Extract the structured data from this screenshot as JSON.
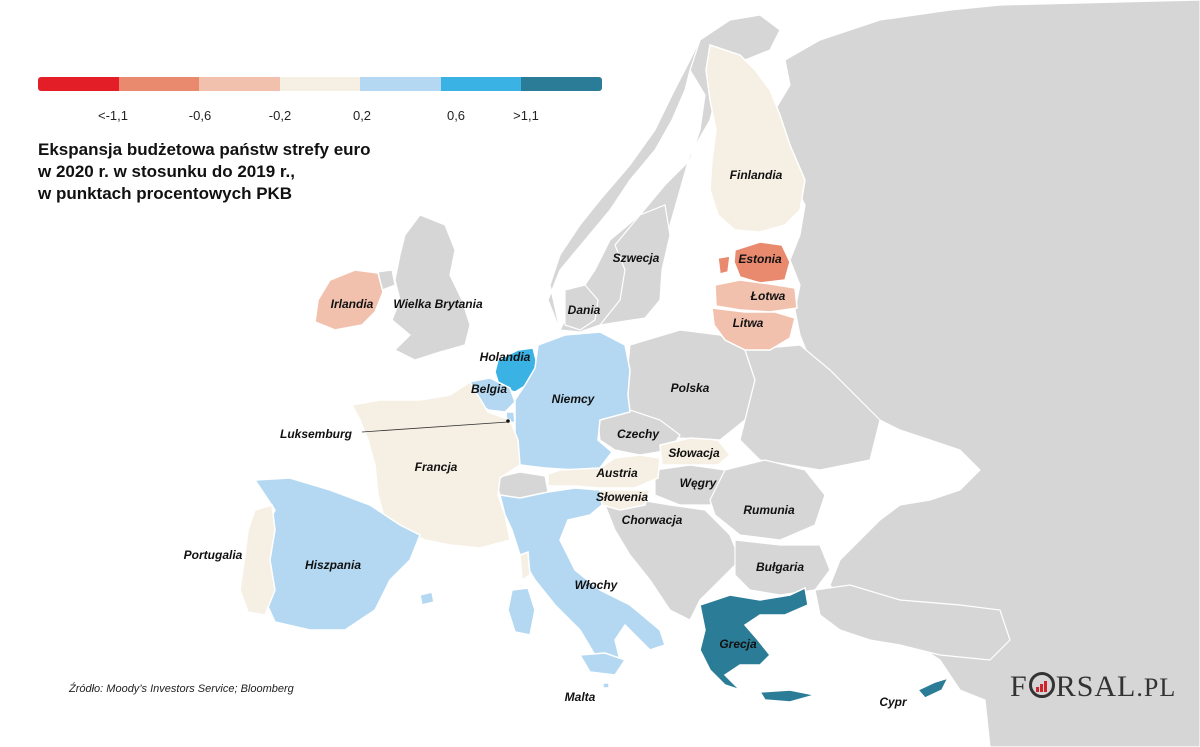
{
  "title_lines": [
    "Ekspansja budżetowa państw strefy euro",
    "w 2020 r.  w stosunku do 2019 r.,",
    "w punktach procentowych PKB"
  ],
  "legend": {
    "colors": [
      "#e41e26",
      "#e98a6e",
      "#f2c1ae",
      "#f6efe3",
      "#b4d8f2",
      "#3bb2e4",
      "#2b7c97"
    ],
    "labels": [
      "<-1,1",
      "-0,6",
      "-0,2",
      "0,2",
      "0,6",
      ">1,1"
    ]
  },
  "colors": {
    "sea": "#ffffff",
    "non_euro_land": "#d6d6d6",
    "border": "#ffffff"
  },
  "countries": {
    "finlandia": "Finlandia",
    "szwecja": "Szwecja",
    "estonia": "Estonia",
    "lotwa": "Łotwa",
    "litwa": "Litwa",
    "irlandia": "Irlandia",
    "wielka_brytania": "Wielka Brytania",
    "dania": "Dania",
    "holandia": "Holandia",
    "belgia": "Belgia",
    "niemcy": "Niemcy",
    "polska": "Polska",
    "luksemburg": "Luksemburg",
    "czechy": "Czechy",
    "slowacja": "Słowacja",
    "austria": "Austria",
    "slowenia": "Słowenia",
    "wegry": "Węgry",
    "francja": "Francja",
    "rumunia": "Rumunia",
    "chorwacja": "Chorwacja",
    "portugalia": "Portugalia",
    "hiszpania": "Hiszpania",
    "wlochy": "Włochy",
    "bulgaria": "Bułgaria",
    "grecja": "Grecja",
    "malta": "Malta",
    "cypr": "Cypr"
  },
  "source": "Źródło: Moody’s Investors Service; Bloomberg",
  "logo": {
    "main": "FORSAL",
    "suffix": ".PL"
  }
}
